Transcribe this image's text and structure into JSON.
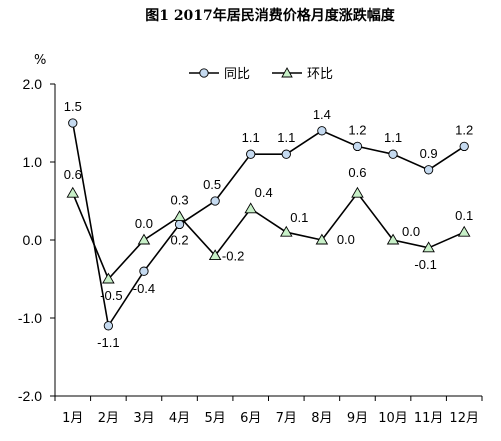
{
  "chart_data": {
    "type": "line",
    "title": "图1  2017年居民消费价格月度涨跌幅度",
    "unit": "%",
    "categories": [
      "1月",
      "2月",
      "3月",
      "4月",
      "5月",
      "6月",
      "7月",
      "8月",
      "9月",
      "10月",
      "11月",
      "12月"
    ],
    "ylim": [
      -2.0,
      2.0
    ],
    "yticks": [
      "2.0",
      "1.0",
      "0.0",
      "-1.0",
      "-2.0"
    ],
    "grid": false,
    "legend_position": "top-right",
    "series": [
      {
        "name": "同比",
        "marker": "circle",
        "marker_color": "#c5daf0",
        "values": [
          1.5,
          -1.1,
          -0.4,
          0.2,
          0.5,
          1.1,
          1.1,
          1.4,
          1.2,
          1.1,
          0.9,
          1.2
        ],
        "labels": [
          "1.5",
          "-1.1",
          "-0.4",
          "0.2",
          "0.5",
          "1.1",
          "1.1",
          "1.4",
          "1.2",
          "1.1",
          "0.9",
          "1.2"
        ]
      },
      {
        "name": "环比",
        "marker": "triangle",
        "marker_color": "#c8f0c8",
        "values": [
          0.6,
          -0.5,
          0.0,
          0.3,
          -0.2,
          0.4,
          0.1,
          0.0,
          0.6,
          0.0,
          -0.1,
          0.1
        ],
        "labels": [
          "0.6",
          "-0.5",
          "0.0",
          "0.3",
          "-0.2",
          "0.4",
          "0.1",
          "0.0",
          "0.6",
          "0.0",
          "-0.1",
          "0.1"
        ]
      }
    ]
  }
}
